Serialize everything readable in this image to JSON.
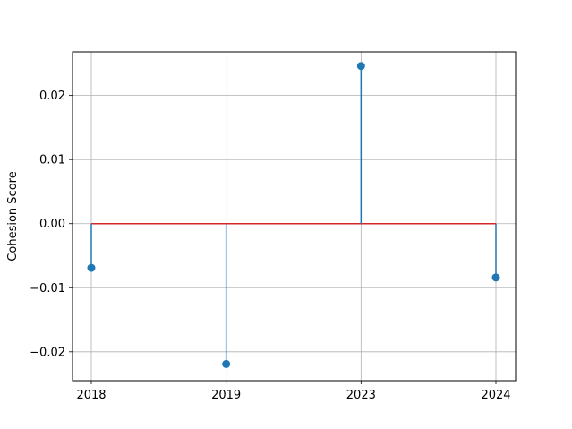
{
  "chart_data": {
    "type": "stem",
    "categories": [
      "2018",
      "2019",
      "2023",
      "2024"
    ],
    "series": [
      {
        "values": [
          -0.0069,
          -0.0219,
          0.0246,
          -0.0084
        ]
      }
    ],
    "baseline": 0.0,
    "title": "",
    "xlabel": "",
    "ylabel": "Cohesion Score",
    "ylim": [
      -0.0245,
      0.0268
    ],
    "yticks": [
      -0.02,
      -0.01,
      0.0,
      0.01,
      0.02
    ],
    "ytick_labels": [
      "−0.02",
      "−0.01",
      "0.00",
      "0.01",
      "0.02"
    ],
    "grid": true,
    "colors": {
      "stem": "#1f77b4",
      "marker": "#1f77b4",
      "baseline": "#d62728",
      "grid": "#b0b0b0",
      "axes": "#000000"
    }
  }
}
